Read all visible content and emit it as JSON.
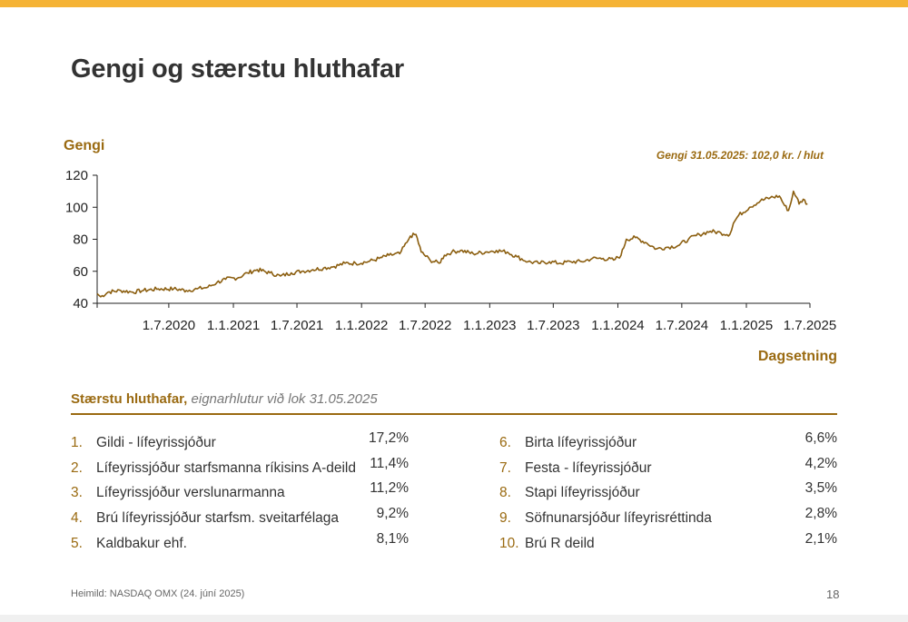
{
  "slide": {
    "title": "Gengi og stærstu hluthafar",
    "page_number": "18",
    "source": "Heimild: NASDAQ OMX (24. júní 2025)"
  },
  "colors": {
    "accent_top_bar": "#f5b335",
    "gold": "#9a6a11",
    "line": "#8b5e0f"
  },
  "chart_data": {
    "type": "line",
    "ylabel": "Gengi",
    "xlabel": "Dagsetning",
    "annotation": "Gengi 31.05.2025: 102,0 kr. / hlut",
    "ylim": [
      40,
      120
    ],
    "yticks": [
      40,
      60,
      80,
      100,
      120
    ],
    "xlim": [
      "2019-12-10",
      "2025-07-01"
    ],
    "xticks": [
      "1.7.2020",
      "1.1.2021",
      "1.7.2021",
      "1.1.2022",
      "1.7.2022",
      "1.1.2023",
      "1.7.2023",
      "1.1.2024",
      "1.7.2024",
      "1.1.2025",
      "1.7.2025"
    ],
    "xtick_dates": [
      "2020-07-01",
      "2021-01-01",
      "2021-07-01",
      "2022-01-01",
      "2022-07-01",
      "2023-01-01",
      "2023-07-01",
      "2024-01-01",
      "2024-07-01",
      "2025-01-01",
      "2025-07-01"
    ],
    "grid": false,
    "series": [
      {
        "points": [
          [
            "2019-12-10",
            46
          ],
          [
            "2019-12-20",
            44
          ],
          [
            "2020-01-10",
            47
          ],
          [
            "2020-02-15",
            48
          ],
          [
            "2020-03-20",
            47
          ],
          [
            "2020-04-20",
            48
          ],
          [
            "2020-06-01",
            49
          ],
          [
            "2020-07-15",
            49
          ],
          [
            "2020-08-20",
            48
          ],
          [
            "2020-09-20",
            49
          ],
          [
            "2020-10-20",
            50
          ],
          [
            "2020-11-15",
            53
          ],
          [
            "2020-12-10",
            55
          ],
          [
            "2021-01-15",
            56
          ],
          [
            "2021-02-10",
            59
          ],
          [
            "2021-03-10",
            61
          ],
          [
            "2021-04-15",
            59
          ],
          [
            "2021-05-15",
            57
          ],
          [
            "2021-06-15",
            59
          ],
          [
            "2021-07-15",
            60
          ],
          [
            "2021-08-15",
            61
          ],
          [
            "2021-09-15",
            62
          ],
          [
            "2021-10-15",
            63
          ],
          [
            "2021-11-15",
            65
          ],
          [
            "2021-12-15",
            65
          ],
          [
            "2022-01-20",
            66
          ],
          [
            "2022-02-20",
            68
          ],
          [
            "2022-03-20",
            70
          ],
          [
            "2022-04-20",
            71
          ],
          [
            "2022-05-10",
            78
          ],
          [
            "2022-05-20",
            82
          ],
          [
            "2022-06-05",
            83
          ],
          [
            "2022-06-20",
            72
          ],
          [
            "2022-07-15",
            67
          ],
          [
            "2022-08-10",
            65
          ],
          [
            "2022-08-25",
            70
          ],
          [
            "2022-09-15",
            72
          ],
          [
            "2022-10-10",
            73
          ],
          [
            "2022-11-15",
            71
          ],
          [
            "2022-12-20",
            72
          ],
          [
            "2023-01-20",
            73
          ],
          [
            "2023-02-20",
            72
          ],
          [
            "2023-03-20",
            69
          ],
          [
            "2023-04-20",
            66
          ],
          [
            "2023-05-20",
            65
          ],
          [
            "2023-06-20",
            66
          ],
          [
            "2023-07-20",
            65
          ],
          [
            "2023-08-20",
            66
          ],
          [
            "2023-09-20",
            66
          ],
          [
            "2023-10-20",
            68
          ],
          [
            "2023-11-20",
            68
          ],
          [
            "2023-12-20",
            67
          ],
          [
            "2024-01-10",
            70
          ],
          [
            "2024-01-25",
            80
          ],
          [
            "2024-02-20",
            81
          ],
          [
            "2024-03-20",
            78
          ],
          [
            "2024-04-20",
            74
          ],
          [
            "2024-05-20",
            75
          ],
          [
            "2024-06-20",
            76
          ],
          [
            "2024-07-20",
            80
          ],
          [
            "2024-08-20",
            83
          ],
          [
            "2024-09-20",
            85
          ],
          [
            "2024-10-20",
            84
          ],
          [
            "2024-11-15",
            83
          ],
          [
            "2024-11-25",
            90
          ],
          [
            "2024-12-10",
            95
          ],
          [
            "2025-01-10",
            100
          ],
          [
            "2025-02-10",
            104
          ],
          [
            "2025-03-10",
            106
          ],
          [
            "2025-04-05",
            107
          ],
          [
            "2025-04-20",
            101
          ],
          [
            "2025-05-01",
            98
          ],
          [
            "2025-05-08",
            103
          ],
          [
            "2025-05-15",
            110
          ],
          [
            "2025-05-25",
            106
          ],
          [
            "2025-05-31",
            102
          ],
          [
            "2025-06-12",
            105
          ],
          [
            "2025-06-24",
            102
          ]
        ]
      }
    ]
  },
  "shareholders": {
    "title_strong": "Stærstu hluthafar,",
    "title_sub": "eignarhlutur við lok 31.05.2025",
    "left": [
      {
        "num": "1.",
        "name": "Gildi - lífeyrissjóður",
        "pct": "17,2%"
      },
      {
        "num": "2.",
        "name": "Lífeyrissjóður starfsmanna ríkisins A-deild",
        "pct": "11,4%"
      },
      {
        "num": "3.",
        "name": "Lífeyrissjóður verslunarmanna",
        "pct": "11,2%"
      },
      {
        "num": "4.",
        "name": "Brú lífeyrissjóður starfsm. sveitarfélaga",
        "pct": "9,2%"
      },
      {
        "num": "5.",
        "name": "Kaldbakur ehf.",
        "pct": "8,1%"
      }
    ],
    "right": [
      {
        "num": "6.",
        "name": "Birta lífeyrissjóður",
        "pct": "6,6%"
      },
      {
        "num": "7.",
        "name": "Festa - lífeyrissjóður",
        "pct": "4,2%"
      },
      {
        "num": "8.",
        "name": "Stapi lífeyrissjóður",
        "pct": "3,5%"
      },
      {
        "num": "9.",
        "name": "Söfnunarsjóður lífeyrisréttinda",
        "pct": "2,8%"
      },
      {
        "num": "10.",
        "name": "Brú R deild",
        "pct": "2,1%"
      }
    ]
  }
}
